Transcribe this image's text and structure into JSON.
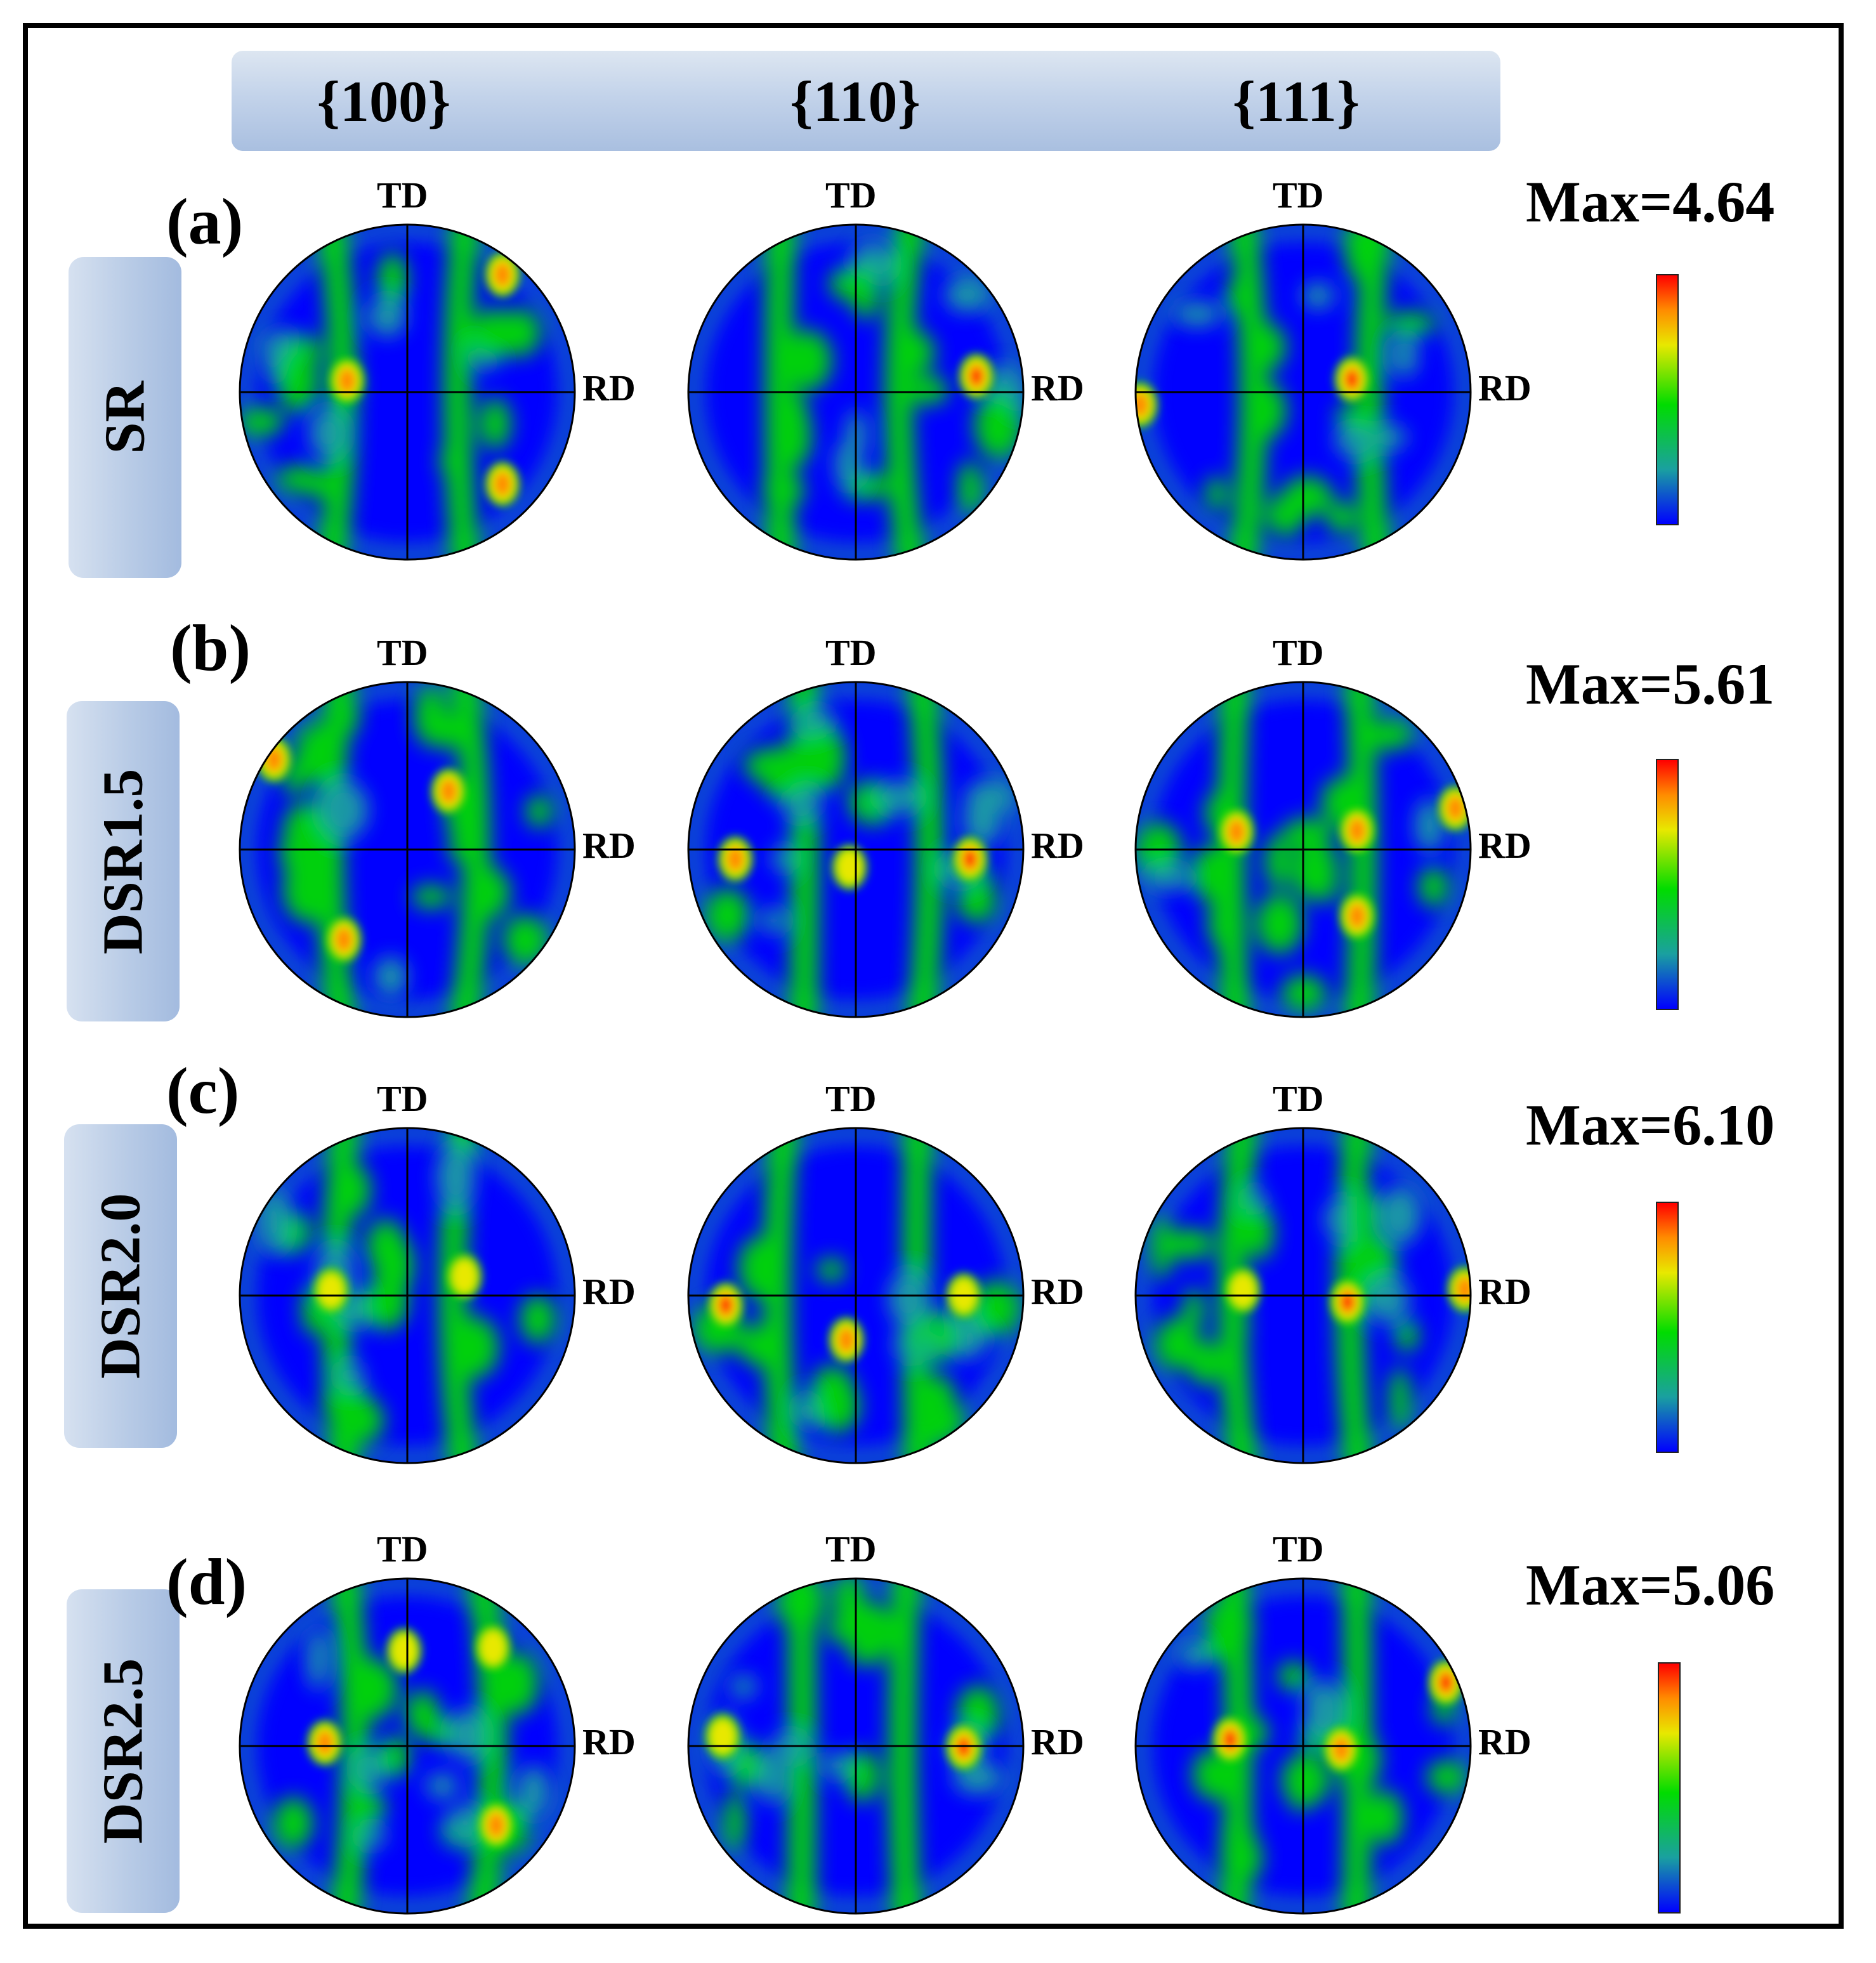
{
  "columns": [
    "{100}",
    "{110}",
    "{111}"
  ],
  "axis_labels": {
    "top": "TD",
    "right": "RD"
  },
  "rows": [
    {
      "letter": "(a)",
      "sample": "SR",
      "max_label": "Max=4.64"
    },
    {
      "letter": "(b)",
      "sample": "DSR1.5",
      "max_label": "Max=5.61"
    },
    {
      "letter": "(c)",
      "sample": "DSR2.0",
      "max_label": "Max=6.10"
    },
    {
      "letter": "(d)",
      "sample": "DSR2.5",
      "max_label": "Max=5.06"
    }
  ],
  "colormap": [
    "#0000ff",
    "#1aa0a0",
    "#00dc00",
    "#e8e800",
    "#ff8c00",
    "#ff0000"
  ]
}
